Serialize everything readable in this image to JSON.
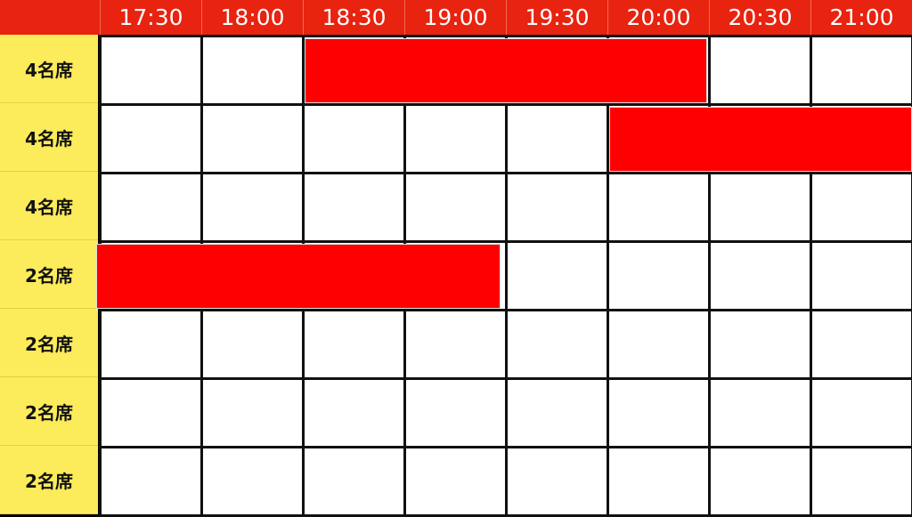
{
  "colors": {
    "header": "#E8230F",
    "label_column": "#FCEB5A",
    "booked": "#FF0000",
    "free": "#FFFFFF"
  },
  "times": [
    "17:30",
    "18:00",
    "18:30",
    "19:00",
    "19:30",
    "20:00",
    "20:30",
    "21:00"
  ],
  "tables": [
    {
      "label": "4名席",
      "booked": [
        2,
        3,
        4,
        5
      ]
    },
    {
      "label": "4名席",
      "booked": [
        5,
        6,
        7
      ]
    },
    {
      "label": "4名席",
      "booked": []
    },
    {
      "label": "2名席",
      "booked": [
        0,
        1,
        2,
        3
      ]
    },
    {
      "label": "2名席",
      "booked": []
    },
    {
      "label": "2名席",
      "booked": []
    },
    {
      "label": "2名席",
      "booked": []
    }
  ]
}
